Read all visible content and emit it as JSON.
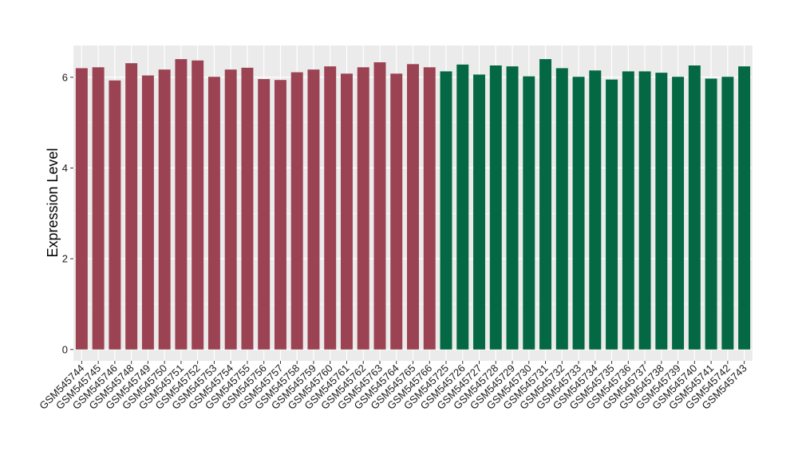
{
  "chart_data": {
    "type": "bar",
    "title": "",
    "xlabel": "",
    "ylabel": "Expression Level",
    "ylim": [
      -0.25,
      6.7
    ],
    "yticks": [
      0,
      2,
      4,
      6
    ],
    "ytick_labels": [
      "0",
      "2",
      "4",
      "6"
    ],
    "grid": true,
    "legend": "none",
    "panel_background": "#ebebeb",
    "gridline_color": "#ffffff",
    "categories": [
      "GSM545744",
      "GSM545745",
      "GSM545746",
      "GSM545748",
      "GSM545749",
      "GSM545750",
      "GSM545751",
      "GSM545752",
      "GSM545753",
      "GSM545754",
      "GSM545755",
      "GSM545756",
      "GSM545757",
      "GSM545758",
      "GSM545759",
      "GSM545760",
      "GSM545761",
      "GSM545762",
      "GSM545763",
      "GSM545764",
      "GSM545765",
      "GSM545766",
      "GSM545725",
      "GSM545726",
      "GSM545727",
      "GSM545728",
      "GSM545729",
      "GSM545730",
      "GSM545731",
      "GSM545732",
      "GSM545733",
      "GSM545734",
      "GSM545735",
      "GSM545736",
      "GSM545737",
      "GSM545738",
      "GSM545739",
      "GSM545740",
      "GSM545741",
      "GSM545742",
      "GSM545743"
    ],
    "values": [
      6.2,
      6.22,
      5.93,
      6.31,
      6.04,
      6.17,
      6.4,
      6.37,
      6.01,
      6.17,
      6.21,
      5.96,
      5.94,
      6.11,
      6.17,
      6.24,
      6.08,
      6.22,
      6.33,
      6.08,
      6.29,
      6.22,
      6.13,
      6.28,
      6.06,
      6.26,
      6.24,
      6.02,
      6.4,
      6.2,
      6.01,
      6.15,
      5.95,
      6.13,
      6.13,
      6.1,
      6.01,
      6.26,
      5.97,
      6.01,
      6.24
    ],
    "bar_colors": [
      "#9b4352",
      "#9b4352",
      "#9b4352",
      "#9b4352",
      "#9b4352",
      "#9b4352",
      "#9b4352",
      "#9b4352",
      "#9b4352",
      "#9b4352",
      "#9b4352",
      "#9b4352",
      "#9b4352",
      "#9b4352",
      "#9b4352",
      "#9b4352",
      "#9b4352",
      "#9b4352",
      "#9b4352",
      "#9b4352",
      "#9b4352",
      "#9b4352",
      "#046845",
      "#046845",
      "#046845",
      "#046845",
      "#046845",
      "#046845",
      "#046845",
      "#046845",
      "#046845",
      "#046845",
      "#046845",
      "#046845",
      "#046845",
      "#046845",
      "#046845",
      "#046845",
      "#046845",
      "#046845",
      "#046845"
    ]
  }
}
